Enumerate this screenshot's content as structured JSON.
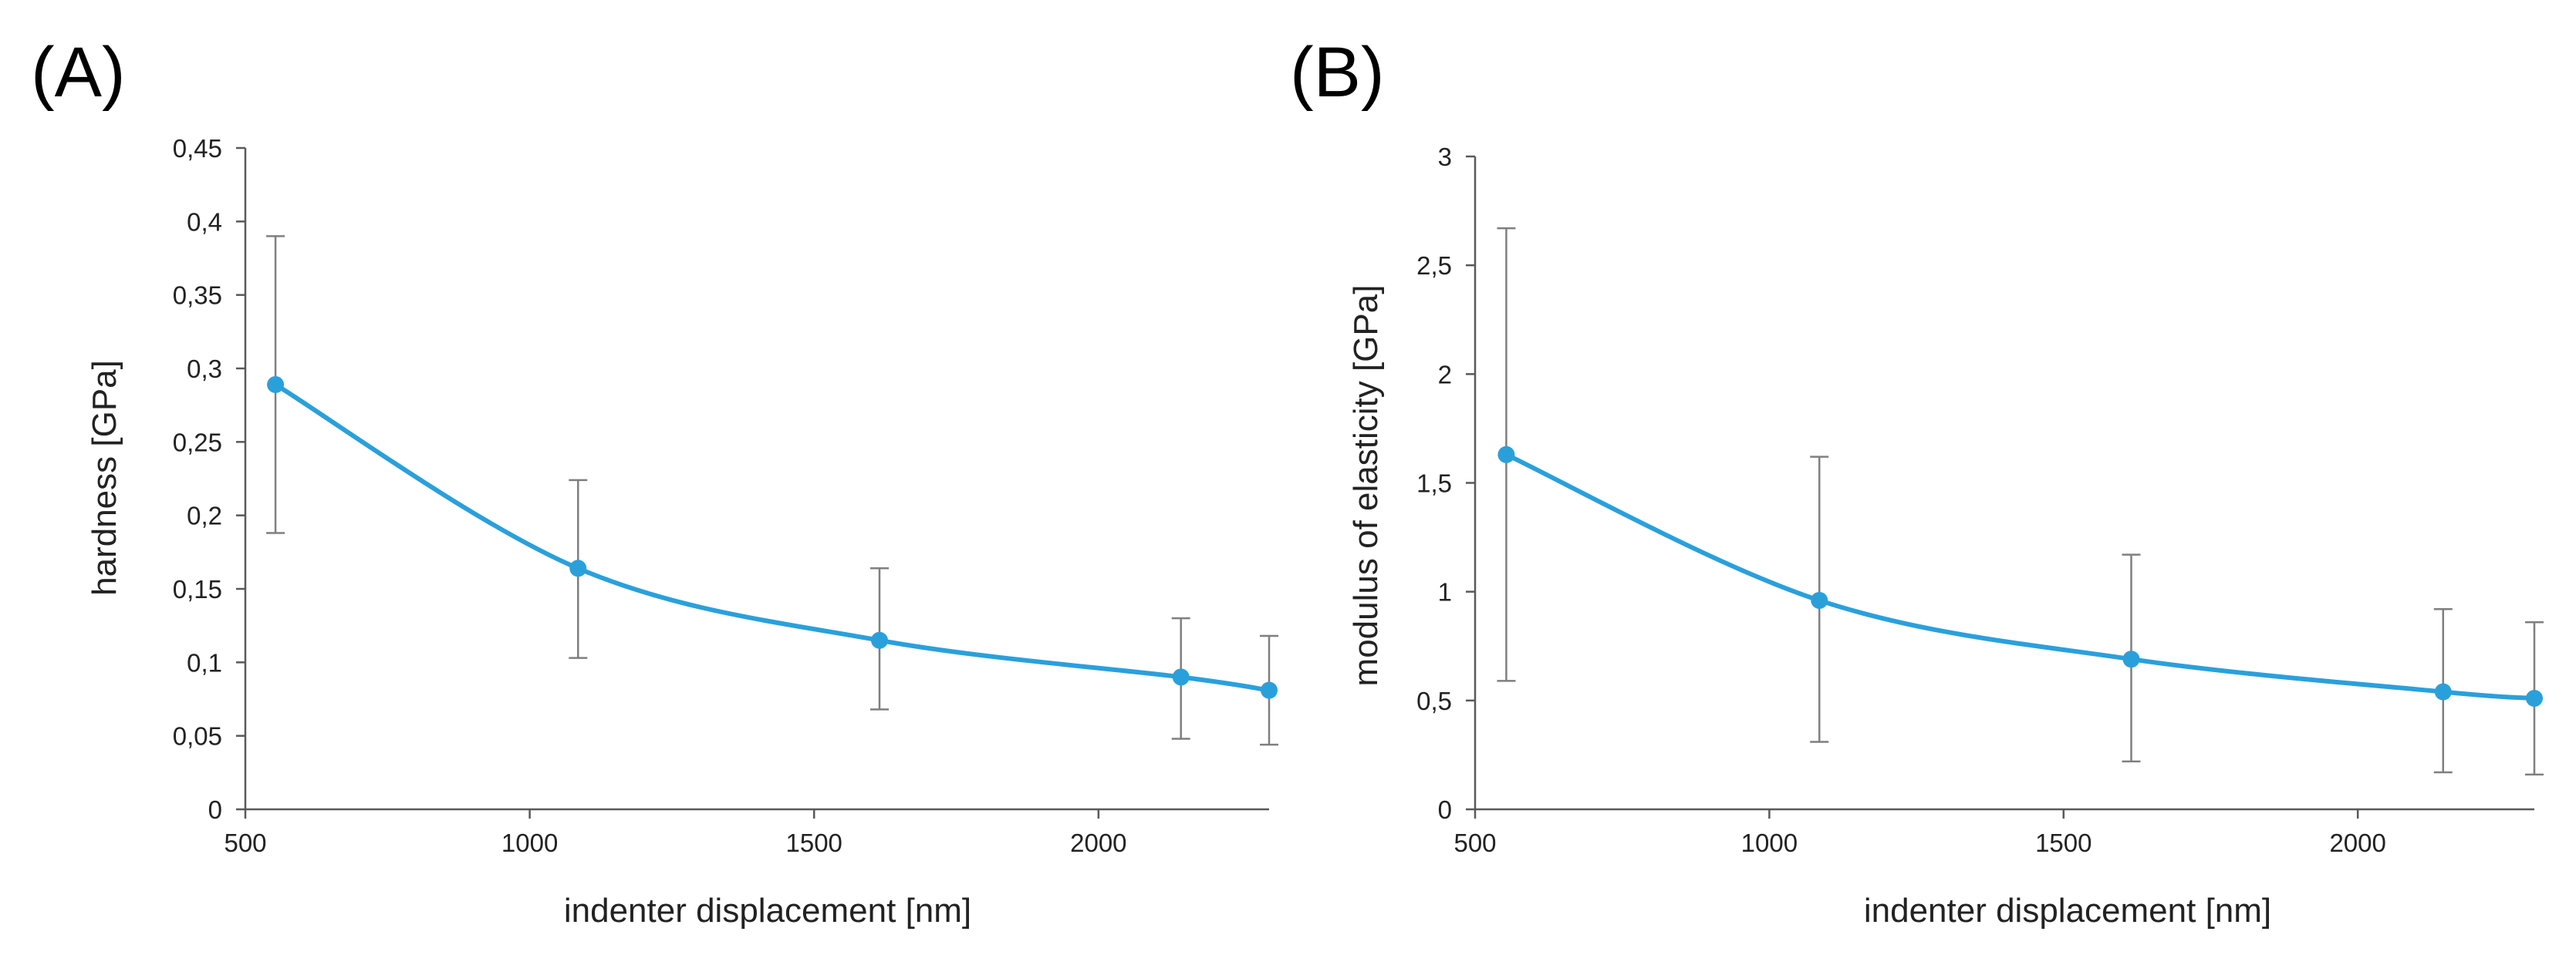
{
  "chart_data": [
    {
      "type": "line",
      "panel_label": "(A)",
      "title": "",
      "xlabel": "indenter displacement   [nm]",
      "ylabel": "hardness   [GPa]",
      "xlim": [
        500,
        2300
      ],
      "ylim": [
        0,
        0.45
      ],
      "xticks": [
        500,
        1000,
        1500,
        2000
      ],
      "xtick_labels": [
        "500",
        "1000",
        "1500",
        "2000"
      ],
      "yticks": [
        0,
        0.05,
        0.1,
        0.15,
        0.2,
        0.25,
        0.3,
        0.35,
        0.4,
        0.45
      ],
      "ytick_labels": [
        "0",
        "0,05",
        "0,1",
        "0,15",
        "0,2",
        "0,25",
        "0,3",
        "0,35",
        "0,4",
        "0,45"
      ],
      "grid": false,
      "color": "#2aa0db",
      "series": [
        {
          "name": "hardness",
          "x": [
            553,
            1085,
            1615,
            2145,
            2300
          ],
          "y": [
            0.289,
            0.164,
            0.115,
            0.09,
            0.081
          ],
          "y_low": [
            0.188,
            0.103,
            0.068,
            0.048,
            0.044
          ],
          "y_high": [
            0.39,
            0.224,
            0.164,
            0.13,
            0.118
          ]
        }
      ]
    },
    {
      "type": "line",
      "panel_label": "(B)",
      "title": "",
      "xlabel": "indenter displacement   [nm]",
      "ylabel": "modulus of elasticity   [GPa]",
      "xlim": [
        500,
        2300
      ],
      "ylim": [
        0,
        3
      ],
      "xticks": [
        500,
        1000,
        1500,
        2000
      ],
      "xtick_labels": [
        "500",
        "1000",
        "1500",
        "2000"
      ],
      "yticks": [
        0,
        0.5,
        1,
        1.5,
        2,
        2.5,
        3
      ],
      "ytick_labels": [
        "0",
        "0,5",
        "1",
        "1,5",
        "2",
        "2,5",
        "3"
      ],
      "grid": false,
      "color": "#2aa0db",
      "series": [
        {
          "name": "modulus of elasticity",
          "x": [
            553,
            1085,
            1615,
            2145,
            2300
          ],
          "y": [
            1.63,
            0.96,
            0.69,
            0.54,
            0.51
          ],
          "y_low": [
            0.59,
            0.31,
            0.22,
            0.17,
            0.16
          ],
          "y_high": [
            2.67,
            1.62,
            1.17,
            0.92,
            0.86
          ]
        }
      ]
    }
  ]
}
